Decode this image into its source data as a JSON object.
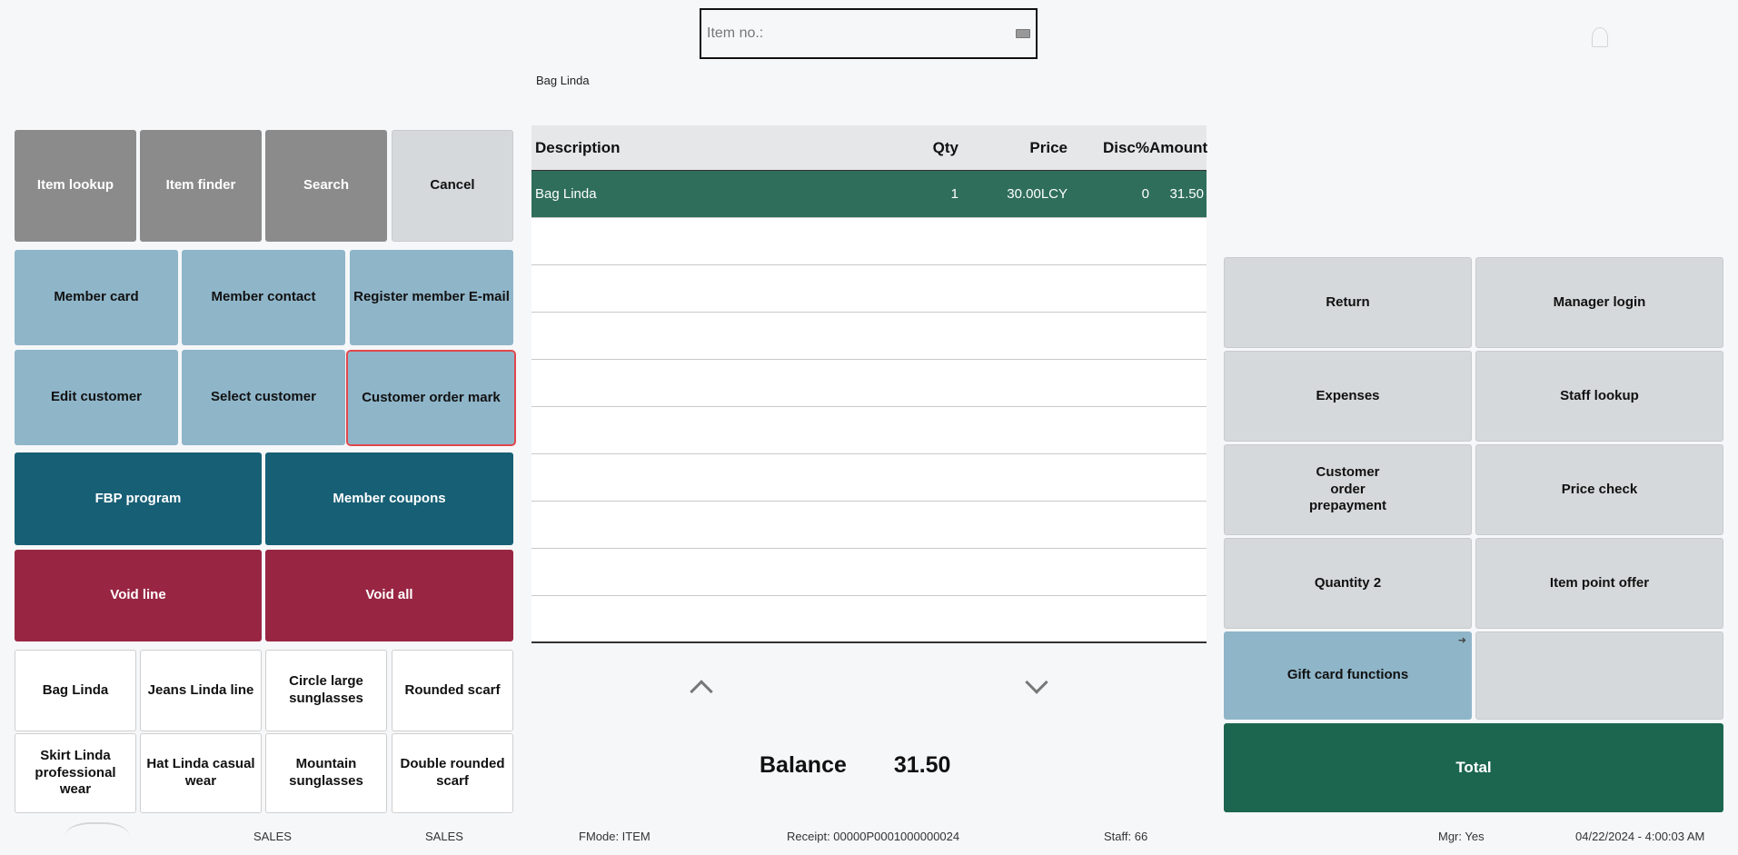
{
  "header": {
    "item_no_placeholder": "Item no.:",
    "last_item": "Bag Linda"
  },
  "left_buttons": {
    "row1": [
      "Item lookup",
      "Item finder",
      "Search",
      "Cancel"
    ],
    "row2": [
      "Member card",
      "Member contact",
      "Register member E-mail"
    ],
    "row3": [
      "Edit customer",
      "Select customer",
      "Customer order mark"
    ],
    "row4": [
      "FBP program",
      "Member coupons"
    ],
    "row5": [
      "Void line",
      "Void all"
    ],
    "items1": [
      "Bag Linda",
      "Jeans Linda line",
      "Circle large sunglasses",
      "Rounded scarf"
    ],
    "items2": [
      "Skirt Linda professional wear",
      "Hat Linda casual wear",
      "Mountain sunglasses",
      "Double rounded scarf"
    ]
  },
  "table": {
    "headers": [
      "Description",
      "Qty",
      "Price",
      "Disc%",
      "Amount"
    ],
    "rows": [
      {
        "description": "Bag Linda",
        "qty": "1",
        "price": "30.00LCY",
        "disc": "0",
        "amount": "31.50"
      }
    ]
  },
  "balance": {
    "label": "Balance",
    "value": "31.50"
  },
  "right_buttons": [
    "Return",
    "Manager login",
    "Expenses",
    "Staff lookup",
    "Customer order prepayment",
    "Price check",
    "Quantity 2",
    "Item point offer",
    "Gift card functions",
    ""
  ],
  "total_label": "Total",
  "status": {
    "mode1": "SALES",
    "mode2": "SALES",
    "fmode": "FMode: ITEM",
    "receipt": "Receipt: 00000P0001000000024",
    "staff": "Staff: 66",
    "mgr": "Mgr: Yes",
    "datetime": "04/22/2024 - 4:00:03 AM"
  },
  "colors": {
    "selected_row": "#2f6e5b",
    "total": "#1c6650",
    "void": "#982643",
    "teal": "#175f75",
    "member": "#8fb5c9"
  }
}
